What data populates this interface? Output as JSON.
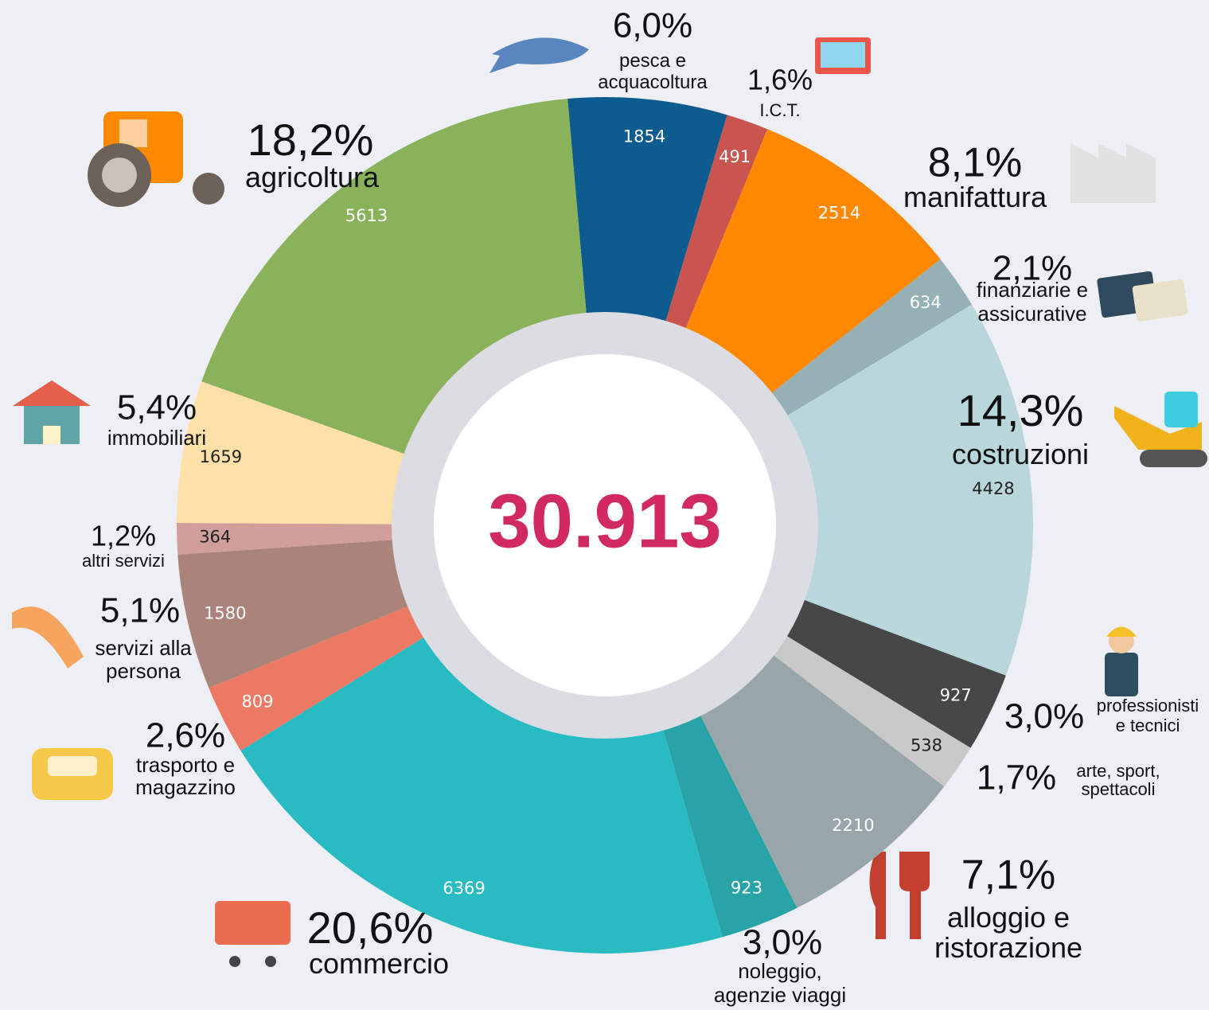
{
  "chart_data": {
    "type": "pie",
    "center_label": "30.913",
    "categories": [
      "pesca e\nacquacoltura",
      "I.C.T.",
      "manifattura",
      "finanziarie e\nassicurative",
      "costruzioni",
      "professionisti\ne tecnici",
      "arte, sport,\nspettacoli",
      "alloggio e\nristorazione",
      "noleggio,\nagenzie viaggi",
      "commercio",
      "trasporto e\nmagazzino",
      "servizi alla\npersona",
      "altri servizi",
      "immobiliari",
      "agricoltura"
    ],
    "values": [
      1854,
      491,
      2514,
      634,
      4428,
      927,
      538,
      2210,
      923,
      6369,
      809,
      1580,
      364,
      1659,
      5613
    ],
    "percent_labels": [
      "6,0%",
      "1,6%",
      "8,1%",
      "2,1%",
      "14,3%",
      "3,0%",
      "1,7%",
      "7,1%",
      "3,0%",
      "20,6%",
      "2,6%",
      "5,1%",
      "1,2%",
      "5,4%",
      "18,2%"
    ],
    "colors": [
      "#0d5c8f",
      "#c9554f",
      "#ff8800",
      "#96b1b5",
      "#b9d6da",
      "#474747",
      "#c9c9c9",
      "#98a6a9",
      "#28a4a6",
      "#28bbc2",
      "#ec7963",
      "#aa847a",
      "#d19f9b",
      "#ffe0a9",
      "#8ab25a"
    ]
  }
}
